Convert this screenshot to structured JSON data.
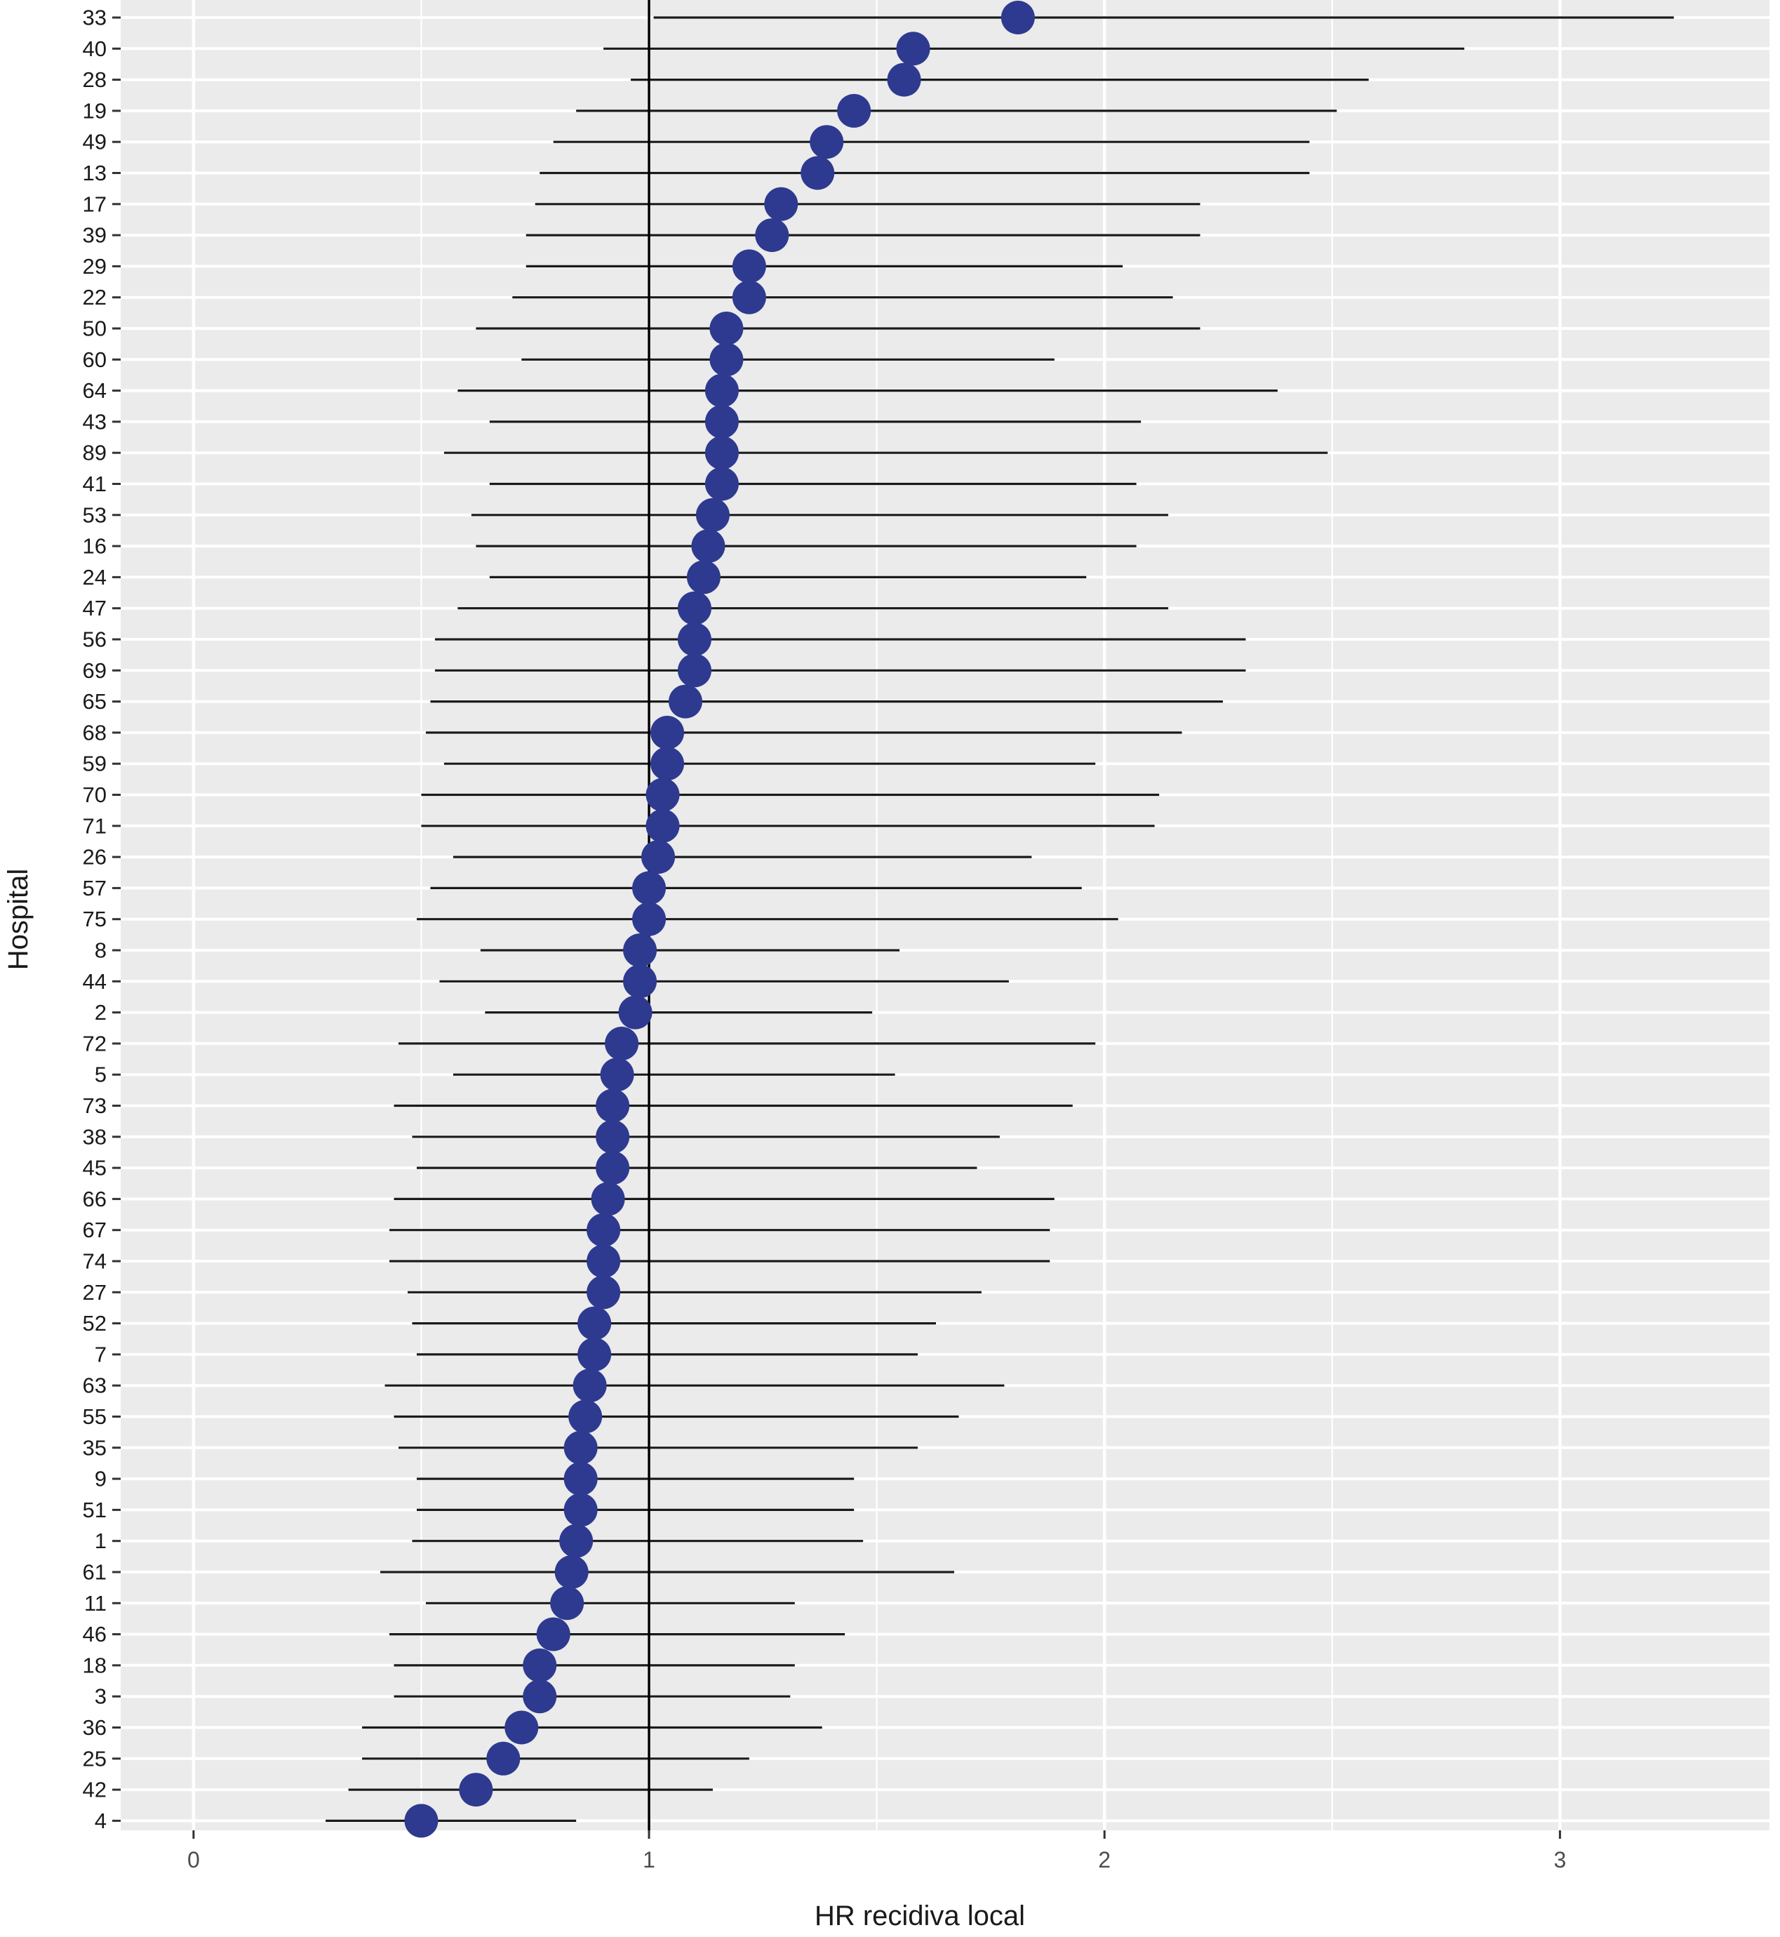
{
  "chart_data": {
    "type": "scatter",
    "subtype": "caterpillar / forest plot with confidence intervals",
    "title": "",
    "xlabel": "HR recidiva local",
    "ylabel": "Hospital",
    "xlim": [
      -0.16,
      3.46
    ],
    "xticks": [
      0,
      1,
      2,
      3
    ],
    "xtick_labels": [
      "0",
      "1",
      "2",
      "3"
    ],
    "reference_line_x": 1,
    "grid": true,
    "legend": "none",
    "colors": {
      "panel_background": "#ebebeb",
      "grid_line": "#ffffff",
      "point": "#2e3a8f",
      "interval_line": "#1a1a1a",
      "reference_line": "#000000",
      "text": "#1a1a1a"
    },
    "hospitals": [
      {
        "id": "33",
        "hr": 1.81,
        "lower": 1.01,
        "upper": 3.25
      },
      {
        "id": "40",
        "hr": 1.58,
        "lower": 0.9,
        "upper": 2.79
      },
      {
        "id": "28",
        "hr": 1.56,
        "lower": 0.96,
        "upper": 2.58
      },
      {
        "id": "19",
        "hr": 1.45,
        "lower": 0.84,
        "upper": 2.51
      },
      {
        "id": "49",
        "hr": 1.39,
        "lower": 0.79,
        "upper": 2.45
      },
      {
        "id": "13",
        "hr": 1.37,
        "lower": 0.76,
        "upper": 2.45
      },
      {
        "id": "17",
        "hr": 1.29,
        "lower": 0.75,
        "upper": 2.21
      },
      {
        "id": "39",
        "hr": 1.27,
        "lower": 0.73,
        "upper": 2.21
      },
      {
        "id": "29",
        "hr": 1.22,
        "lower": 0.73,
        "upper": 2.04
      },
      {
        "id": "22",
        "hr": 1.22,
        "lower": 0.7,
        "upper": 2.15
      },
      {
        "id": "50",
        "hr": 1.17,
        "lower": 0.62,
        "upper": 2.21
      },
      {
        "id": "60",
        "hr": 1.17,
        "lower": 0.72,
        "upper": 1.89
      },
      {
        "id": "64",
        "hr": 1.16,
        "lower": 0.58,
        "upper": 2.38
      },
      {
        "id": "43",
        "hr": 1.16,
        "lower": 0.65,
        "upper": 2.08
      },
      {
        "id": "89",
        "hr": 1.16,
        "lower": 0.55,
        "upper": 2.49
      },
      {
        "id": "41",
        "hr": 1.16,
        "lower": 0.65,
        "upper": 2.07
      },
      {
        "id": "53",
        "hr": 1.14,
        "lower": 0.61,
        "upper": 2.14
      },
      {
        "id": "16",
        "hr": 1.13,
        "lower": 0.62,
        "upper": 2.07
      },
      {
        "id": "24",
        "hr": 1.12,
        "lower": 0.65,
        "upper": 1.96
      },
      {
        "id": "47",
        "hr": 1.1,
        "lower": 0.58,
        "upper": 2.14
      },
      {
        "id": "56",
        "hr": 1.1,
        "lower": 0.53,
        "upper": 2.31
      },
      {
        "id": "69",
        "hr": 1.1,
        "lower": 0.53,
        "upper": 2.31
      },
      {
        "id": "65",
        "hr": 1.08,
        "lower": 0.52,
        "upper": 2.26
      },
      {
        "id": "68",
        "hr": 1.04,
        "lower": 0.51,
        "upper": 2.17
      },
      {
        "id": "59",
        "hr": 1.04,
        "lower": 0.55,
        "upper": 1.98
      },
      {
        "id": "70",
        "hr": 1.03,
        "lower": 0.5,
        "upper": 2.12
      },
      {
        "id": "71",
        "hr": 1.03,
        "lower": 0.5,
        "upper": 2.11
      },
      {
        "id": "26",
        "hr": 1.02,
        "lower": 0.57,
        "upper": 1.84
      },
      {
        "id": "57",
        "hr": 1.0,
        "lower": 0.52,
        "upper": 1.95
      },
      {
        "id": "75",
        "hr": 1.0,
        "lower": 0.49,
        "upper": 2.03
      },
      {
        "id": "8",
        "hr": 0.98,
        "lower": 0.63,
        "upper": 1.55
      },
      {
        "id": "44",
        "hr": 0.98,
        "lower": 0.54,
        "upper": 1.79
      },
      {
        "id": "2",
        "hr": 0.97,
        "lower": 0.64,
        "upper": 1.49
      },
      {
        "id": "72",
        "hr": 0.94,
        "lower": 0.45,
        "upper": 1.98
      },
      {
        "id": "5",
        "hr": 0.93,
        "lower": 0.57,
        "upper": 1.54
      },
      {
        "id": "73",
        "hr": 0.92,
        "lower": 0.44,
        "upper": 1.93
      },
      {
        "id": "38",
        "hr": 0.92,
        "lower": 0.48,
        "upper": 1.77
      },
      {
        "id": "45",
        "hr": 0.92,
        "lower": 0.49,
        "upper": 1.72
      },
      {
        "id": "66",
        "hr": 0.91,
        "lower": 0.44,
        "upper": 1.89
      },
      {
        "id": "67",
        "hr": 0.9,
        "lower": 0.43,
        "upper": 1.88
      },
      {
        "id": "74",
        "hr": 0.9,
        "lower": 0.43,
        "upper": 1.88
      },
      {
        "id": "27",
        "hr": 0.9,
        "lower": 0.47,
        "upper": 1.73
      },
      {
        "id": "52",
        "hr": 0.88,
        "lower": 0.48,
        "upper": 1.63
      },
      {
        "id": "7",
        "hr": 0.88,
        "lower": 0.49,
        "upper": 1.59
      },
      {
        "id": "63",
        "hr": 0.87,
        "lower": 0.42,
        "upper": 1.78
      },
      {
        "id": "55",
        "hr": 0.86,
        "lower": 0.44,
        "upper": 1.68
      },
      {
        "id": "35",
        "hr": 0.85,
        "lower": 0.45,
        "upper": 1.59
      },
      {
        "id": "9",
        "hr": 0.85,
        "lower": 0.49,
        "upper": 1.45
      },
      {
        "id": "51",
        "hr": 0.85,
        "lower": 0.49,
        "upper": 1.45
      },
      {
        "id": "1",
        "hr": 0.84,
        "lower": 0.48,
        "upper": 1.47
      },
      {
        "id": "61",
        "hr": 0.83,
        "lower": 0.41,
        "upper": 1.67
      },
      {
        "id": "11",
        "hr": 0.82,
        "lower": 0.51,
        "upper": 1.32
      },
      {
        "id": "46",
        "hr": 0.79,
        "lower": 0.43,
        "upper": 1.43
      },
      {
        "id": "18",
        "hr": 0.76,
        "lower": 0.44,
        "upper": 1.32
      },
      {
        "id": "3",
        "hr": 0.76,
        "lower": 0.44,
        "upper": 1.31
      },
      {
        "id": "36",
        "hr": 0.72,
        "lower": 0.37,
        "upper": 1.38
      },
      {
        "id": "25",
        "hr": 0.68,
        "lower": 0.37,
        "upper": 1.22
      },
      {
        "id": "42",
        "hr": 0.62,
        "lower": 0.34,
        "upper": 1.14
      },
      {
        "id": "4",
        "hr": 0.5,
        "lower": 0.29,
        "upper": 0.84
      }
    ]
  }
}
